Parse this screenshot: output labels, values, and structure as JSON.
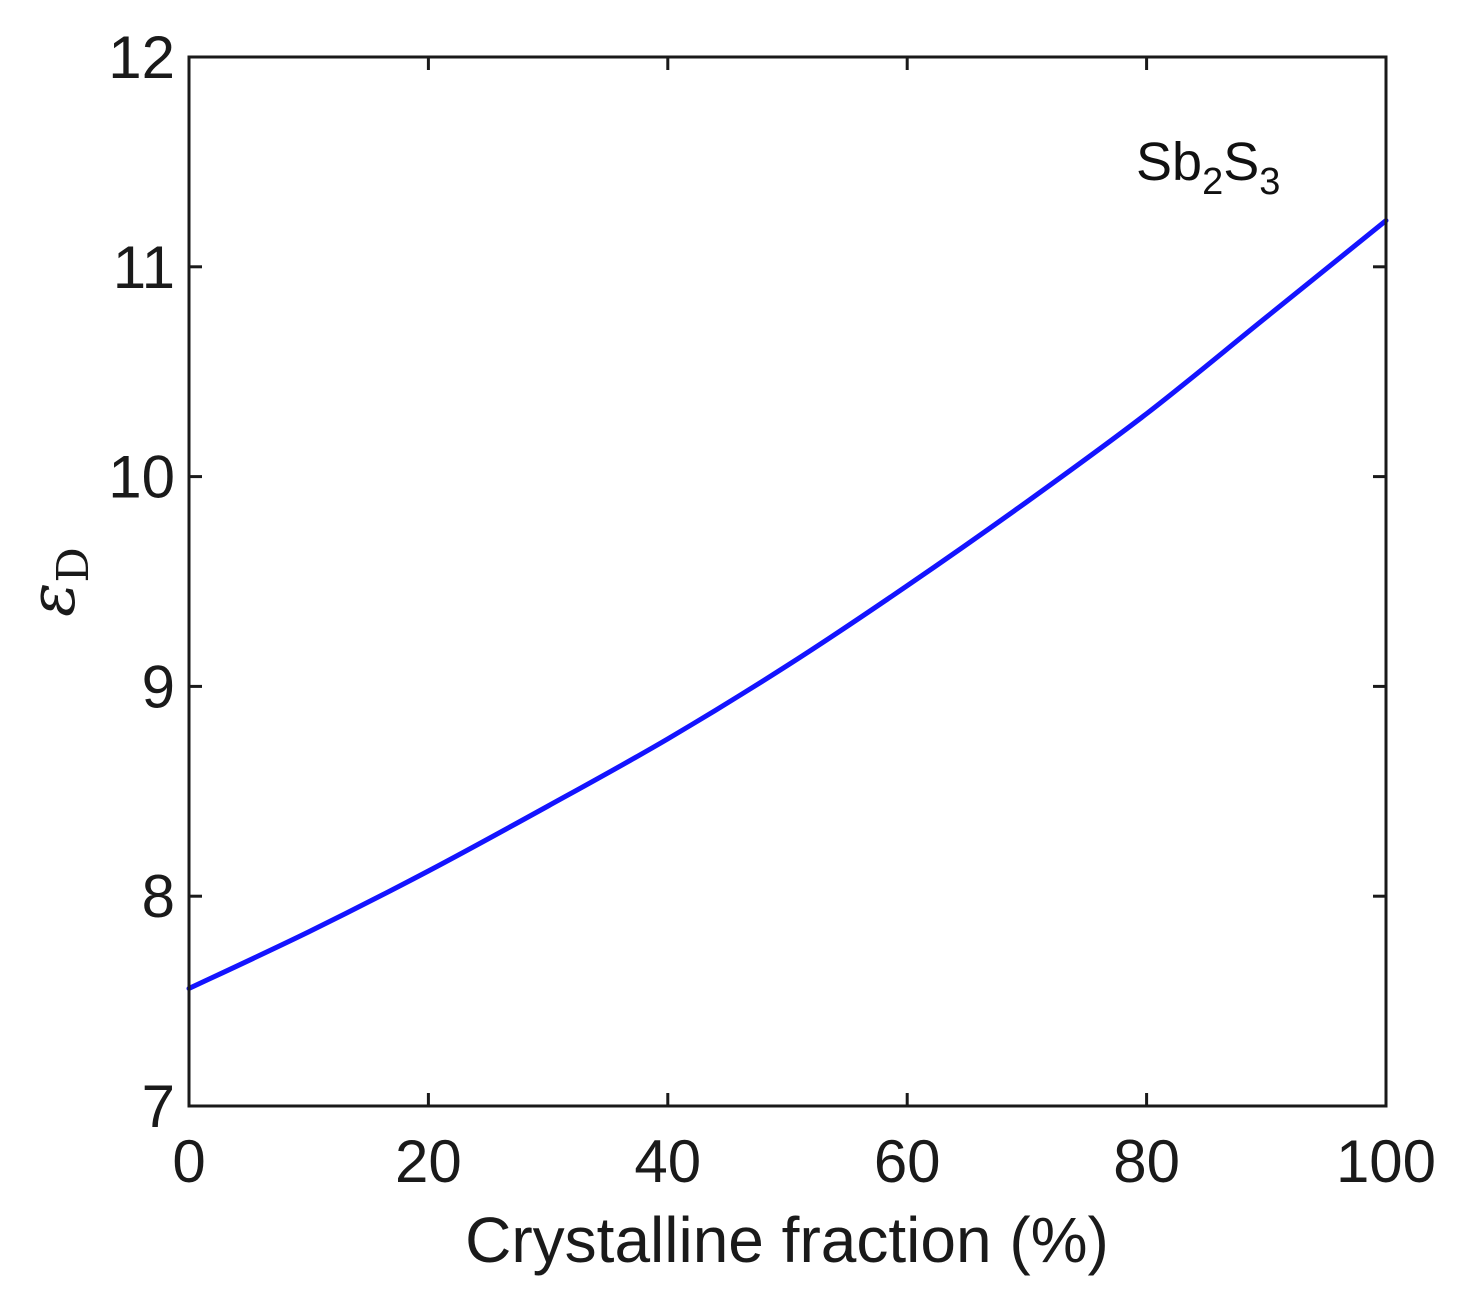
{
  "chart_data": {
    "type": "line",
    "title": "",
    "xlabel": "Crystalline fraction (%)",
    "ylabel": {
      "symbol": "ε",
      "subscript": "D"
    },
    "xlim": [
      0,
      100
    ],
    "ylim": [
      7,
      12
    ],
    "xticks": [
      0,
      20,
      40,
      60,
      80,
      100
    ],
    "yticks": [
      7,
      8,
      9,
      10,
      11,
      12
    ],
    "xtick_labels": [
      "0",
      "20",
      "40",
      "60",
      "80",
      "100"
    ],
    "ytick_labels": [
      "7",
      "8",
      "9",
      "10",
      "11",
      "12"
    ],
    "grid": false,
    "legend": "none",
    "annotation": {
      "parts": [
        "Sb",
        "2",
        "S",
        "3"
      ],
      "position": "top-right"
    },
    "series": [
      {
        "color": "#1414ff",
        "x": [
          0,
          10,
          20,
          30,
          40,
          50,
          60,
          70,
          80,
          90,
          100
        ],
        "y": [
          7.56,
          7.83,
          8.12,
          8.43,
          8.75,
          9.1,
          9.48,
          9.88,
          10.3,
          10.76,
          11.22
        ]
      }
    ]
  }
}
